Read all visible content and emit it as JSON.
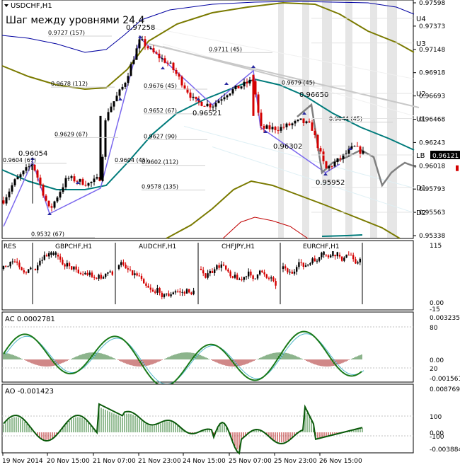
{
  "symbol": "USDCHF,H1",
  "subtitle": "Шаг между уровнями 24.4",
  "colors": {
    "up_candle": "#000000",
    "down_candle": "#d40000",
    "teal_ma": "#007b7b",
    "olive_band": "#7a7a00",
    "blue_band": "#0000a0",
    "red_band": "#c00000",
    "zigzag": "#7b68ee",
    "forecast": "#808080",
    "channel": "#c8c8c8",
    "ac_line": "#1a7a1a",
    "ac_signal": "#4fb7c9"
  },
  "chart_data": [
    {
      "type": "candlestick",
      "title": "USDCHF,H1",
      "price_axis": [
        "0.97598",
        "0.97373",
        "0.97148",
        "0.96918",
        "0.96693",
        "0.96468",
        "0.96243",
        "0.96018",
        "0.95793",
        "0.95563",
        "0.95338"
      ],
      "current_price": "0.96121",
      "levels": [
        {
          "name": "U4",
          "price": 0.97448
        },
        {
          "name": "U3",
          "price": 0.97208
        },
        {
          "name": "U2",
          "price": 0.96718
        },
        {
          "name": "U1",
          "price": 0.96475
        },
        {
          "name": "LB",
          "price": 0.96121
        },
        {
          "name": "D1",
          "price": 0.95805
        },
        {
          "name": "D2",
          "price": 0.95565
        }
      ],
      "peak_labels": [
        "0.97258",
        "0.96054",
        "0.96521",
        "0.96650",
        "0.96302",
        "0.95952"
      ],
      "fib_labels": [
        {
          "text": "0.9727 (157)",
          "price": 0.97275
        },
        {
          "text": "0.9711 (45)",
          "price": 0.97115
        },
        {
          "text": "0.9678 (112)",
          "price": 0.9678
        },
        {
          "text": "0.9676 (45)",
          "price": 0.9676
        },
        {
          "text": "0.9679 (45)",
          "price": 0.9679
        },
        {
          "text": "0.9652 (67)",
          "price": 0.9652
        },
        {
          "text": "0.9644 (45)",
          "price": 0.9644
        },
        {
          "text": "0.9629 (67)",
          "price": 0.9629
        },
        {
          "text": "0.9627 (90)",
          "price": 0.9627
        },
        {
          "text": "0.9604 (45)",
          "price": 0.9604
        },
        {
          "text": "0.9602 (112)",
          "price": 0.9602
        },
        {
          "text": "0.9578 (135)",
          "price": 0.9578
        },
        {
          "text": "0.9532 (67)",
          "price": 0.9532
        },
        {
          "text": "0.9604 (67)",
          "price": 0.9604
        }
      ]
    },
    {
      "type": "candlestick",
      "title": "Cross pairs strip",
      "labels": [
        "RES",
        "GBPCHF,H1",
        "AUDCHF,H1",
        "CHFJPY,H1",
        "EURCHF,H1"
      ],
      "price_axis": [
        "115",
        "0.00",
        "-15"
      ]
    },
    {
      "type": "bar",
      "title": "AC 0.0002781",
      "price_axis": [
        "0.003235",
        "80",
        "0.00",
        "20",
        "-0.001561"
      ]
    },
    {
      "type": "bar",
      "title": "AO -0.001423",
      "price_axis": [
        "0.008769",
        "100",
        "0.00",
        "-100",
        "-0.003884"
      ]
    }
  ],
  "time_axis": [
    "19 Nov 2014",
    "20 Nov 15:00",
    "21 Nov 07:00",
    "21 Nov 23:00",
    "24 Nov 15:00",
    "25 Nov 07:00",
    "25 Nov 23:00",
    "26 Nov 15:00"
  ]
}
